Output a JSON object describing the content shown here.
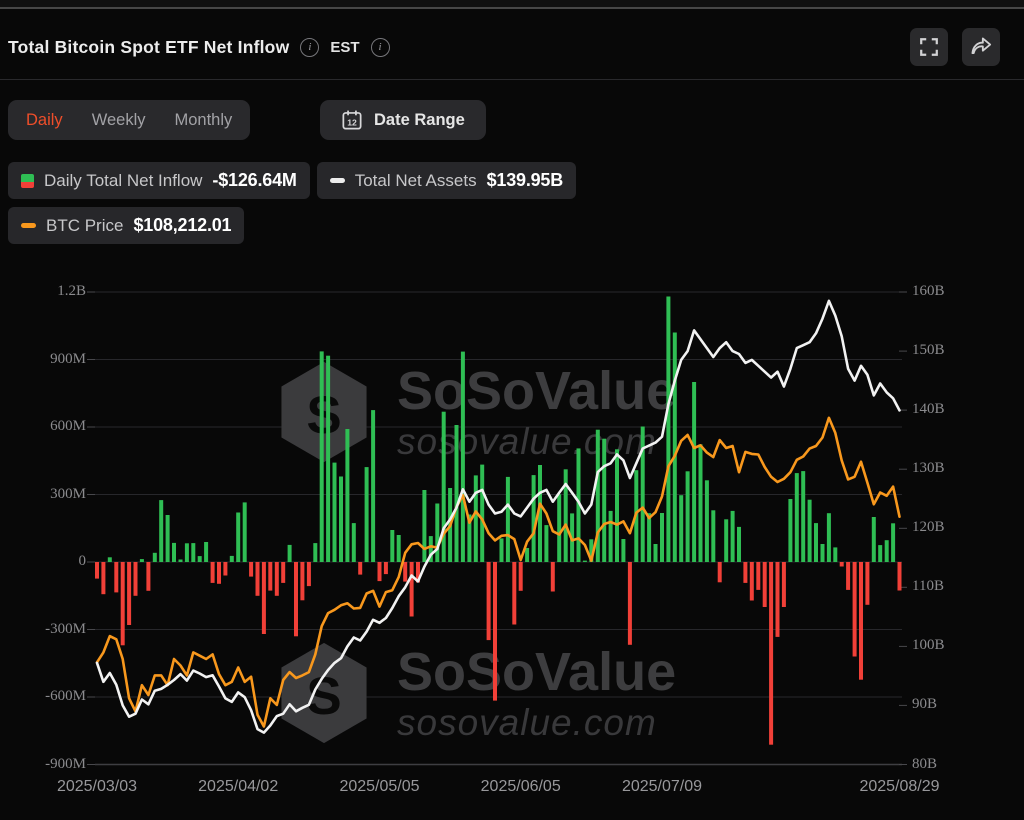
{
  "header": {
    "title": "Total Bitcoin Spot ETF Net Inflow",
    "timezone": "EST"
  },
  "toolbar": {
    "tabs": [
      {
        "label": "Daily",
        "active": true
      },
      {
        "label": "Weekly",
        "active": false
      },
      {
        "label": "Monthly",
        "active": false
      }
    ],
    "date_range_label": "Date Range"
  },
  "legend": {
    "items": [
      {
        "label": "Daily Total Net Inflow",
        "value": "-$126.64M",
        "icon": "bar-green-red"
      },
      {
        "label": "Total Net Assets",
        "value": "$139.95B",
        "icon": "white-dash"
      },
      {
        "label": "BTC Price",
        "value": "$108,212.01",
        "icon": "orange-dash"
      }
    ]
  },
  "watermark": {
    "brand": "SoSoValue",
    "domain": "sosovalue.com"
  },
  "colors": {
    "accent": "#ee4e2a",
    "green": "#2fbe54",
    "red": "#f14038",
    "orange": "#f8981d",
    "white_line": "#f2f2f2",
    "grid": "#27272b",
    "axis_text": "#8b8b8e"
  },
  "chart_data": {
    "type": "combo",
    "title": "Total Bitcoin Spot ETF Net Inflow",
    "grid": "horizontal",
    "legend_position": "top",
    "x": [
      "2025/03/03",
      "2025/03/04",
      "2025/03/05",
      "2025/03/06",
      "2025/03/07",
      "2025/03/10",
      "2025/03/11",
      "2025/03/12",
      "2025/03/13",
      "2025/03/14",
      "2025/03/17",
      "2025/03/18",
      "2025/03/19",
      "2025/03/20",
      "2025/03/21",
      "2025/03/24",
      "2025/03/25",
      "2025/03/26",
      "2025/03/27",
      "2025/03/28",
      "2025/03/31",
      "2025/04/01",
      "2025/04/02",
      "2025/04/03",
      "2025/04/04",
      "2025/04/07",
      "2025/04/08",
      "2025/04/09",
      "2025/04/10",
      "2025/04/11",
      "2025/04/14",
      "2025/04/15",
      "2025/04/16",
      "2025/04/17",
      "2025/04/21",
      "2025/04/22",
      "2025/04/23",
      "2025/04/24",
      "2025/04/25",
      "2025/04/28",
      "2025/04/29",
      "2025/04/30",
      "2025/05/01",
      "2025/05/02",
      "2025/05/05",
      "2025/05/06",
      "2025/05/07",
      "2025/05/08",
      "2025/05/09",
      "2025/05/12",
      "2025/05/13",
      "2025/05/14",
      "2025/05/15",
      "2025/05/16",
      "2025/05/19",
      "2025/05/20",
      "2025/05/21",
      "2025/05/22",
      "2025/05/23",
      "2025/05/27",
      "2025/05/28",
      "2025/05/29",
      "2025/05/30",
      "2025/06/02",
      "2025/06/03",
      "2025/06/04",
      "2025/06/05",
      "2025/06/06",
      "2025/06/09",
      "2025/06/10",
      "2025/06/11",
      "2025/06/12",
      "2025/06/13",
      "2025/06/16",
      "2025/06/17",
      "2025/06/18",
      "2025/06/20",
      "2025/06/23",
      "2025/06/24",
      "2025/06/25",
      "2025/06/26",
      "2025/06/27",
      "2025/06/30",
      "2025/07/01",
      "2025/07/02",
      "2025/07/03",
      "2025/07/07",
      "2025/07/08",
      "2025/07/09",
      "2025/07/10",
      "2025/07/11",
      "2025/07/14",
      "2025/07/15",
      "2025/07/16",
      "2025/07/17",
      "2025/07/18",
      "2025/07/21",
      "2025/07/22",
      "2025/07/23",
      "2025/07/24",
      "2025/07/25",
      "2025/07/28",
      "2025/07/29",
      "2025/07/30",
      "2025/07/31",
      "2025/08/01",
      "2025/08/04",
      "2025/08/05",
      "2025/08/06",
      "2025/08/07",
      "2025/08/08",
      "2025/08/11",
      "2025/08/12",
      "2025/08/13",
      "2025/08/14",
      "2025/08/15",
      "2025/08/18",
      "2025/08/19",
      "2025/08/20",
      "2025/08/21",
      "2025/08/22",
      "2025/08/25",
      "2025/08/26",
      "2025/08/27",
      "2025/08/28",
      "2025/08/29"
    ],
    "series": [
      {
        "name": "Daily Total Net Inflow",
        "type": "bar",
        "unit": "USD millions",
        "axis": "left",
        "values": [
          -74,
          -143,
          21,
          -135,
          -370,
          -280,
          -150,
          13,
          -128,
          41,
          275,
          209,
          85,
          11,
          83,
          84,
          26,
          89,
          -93,
          -97,
          -60,
          27,
          220,
          265,
          -65,
          -150,
          -320,
          -127,
          -150,
          -93,
          76,
          -330,
          -170,
          -107,
          84,
          936,
          917,
          442,
          380,
          591,
          173,
          -56,
          422,
          675,
          -85,
          -54,
          142,
          120,
          -87,
          -242,
          -91,
          320,
          115,
          260,
          668,
          329,
          609,
          935,
          211,
          385,
          433,
          -347,
          -616,
          105,
          378,
          -278,
          -128,
          62,
          386,
          431,
          164,
          -131,
          301,
          412,
          216,
          505,
          6,
          101,
          588,
          548,
          227,
          501,
          102,
          -368,
          408,
          602,
          217,
          80,
          218,
          1180,
          1020,
          297,
          403,
          800,
          523,
          363,
          230,
          -90,
          190,
          227,
          156,
          -93,
          -171,
          -124,
          -200,
          -812,
          -333,
          -200,
          280,
          395,
          404,
          277,
          173,
          80,
          217,
          65,
          -20,
          -124,
          -420,
          -523,
          -190,
          200,
          75,
          97,
          172,
          -126.64
        ]
      },
      {
        "name": "Total Net Assets",
        "type": "line",
        "unit": "USD billions",
        "axis": "right",
        "values": [
          97.2,
          94.0,
          95.5,
          93.5,
          90.0,
          88.1,
          88.6,
          91.0,
          90.2,
          92.5,
          92.8,
          93.5,
          94.3,
          95.3,
          94.2,
          95.9,
          95.4,
          94.8,
          95.1,
          93.2,
          91.2,
          90.6,
          92.2,
          91.4,
          89.2,
          86.0,
          85.4,
          86.6,
          88.2,
          88.6,
          90.2,
          89.0,
          89.6,
          90.1,
          92.7,
          94.5,
          96.0,
          97.2,
          98.0,
          100.0,
          101.5,
          101.0,
          102.5,
          104.5,
          104.0,
          104.8,
          106.5,
          108.5,
          110.0,
          112.0,
          111.0,
          113.5,
          115.5,
          116.5,
          120.0,
          121.5,
          123.5,
          126.6,
          124.5,
          126.0,
          126.5,
          124.0,
          122.5,
          122.8,
          124.0,
          122.5,
          122.0,
          123.5,
          125.0,
          126.0,
          126.5,
          124.5,
          126.0,
          127.5,
          126.0,
          124.5,
          122.5,
          124.0,
          129.5,
          130.5,
          131.0,
          132.5,
          131.5,
          128.5,
          131.0,
          133.5,
          134.0,
          134.5,
          135.5,
          141.0,
          145.0,
          148.5,
          150.0,
          153.5,
          152.0,
          150.5,
          149.0,
          150.5,
          151.5,
          150.0,
          149.5,
          148.0,
          148.5,
          147.5,
          146.5,
          145.5,
          146.5,
          144.0,
          147.0,
          150.5,
          151.0,
          151.5,
          153.0,
          155.5,
          158.5,
          156.0,
          152.5,
          147.0,
          145.0,
          147.5,
          146.0,
          142.5,
          144.5,
          143.0,
          142.0,
          139.95
        ]
      },
      {
        "name": "BTC Price",
        "type": "line",
        "unit": "USD thousands",
        "axis": "hidden",
        "axis_range": [
          70.4,
          142.5
        ],
        "values": [
          86.0,
          87.5,
          90.0,
          89.5,
          86.5,
          80.5,
          78.5,
          82.5,
          81.0,
          84.0,
          84.0,
          82.5,
          86.5,
          85.5,
          84.0,
          87.5,
          87.0,
          86.5,
          87.2,
          84.2,
          82.5,
          83.0,
          85.2,
          83.0,
          83.8,
          78.0,
          76.2,
          80.5,
          79.5,
          83.3,
          84.5,
          83.6,
          84.0,
          84.5,
          87.2,
          91.5,
          93.5,
          94.0,
          94.7,
          95.0,
          94.2,
          94.3,
          96.5,
          96.9,
          94.5,
          96.7,
          97.0,
          99.0,
          102.7,
          104.0,
          104.2,
          103.3,
          103.7,
          103.5,
          105.6,
          106.8,
          109.7,
          111.5,
          107.3,
          109.0,
          107.8,
          105.7,
          104.6,
          105.3,
          105.4,
          104.8,
          101.6,
          104.4,
          105.7,
          110.2,
          108.7,
          106.0,
          105.5,
          107.0,
          104.6,
          104.9,
          103.9,
          101.5,
          105.8,
          107.1,
          107.4,
          107.0,
          107.5,
          105.7,
          108.8,
          109.6,
          108.0,
          108.9,
          111.3,
          115.9,
          117.5,
          119.8,
          120.7,
          118.7,
          119.1,
          118.0,
          117.3,
          119.9,
          118.7,
          119.0,
          115.0,
          118.1,
          117.8,
          117.7,
          115.8,
          114.3,
          113.5,
          114.0,
          115.0,
          116.9,
          117.4,
          118.6,
          119.0,
          120.3,
          123.3,
          121.0,
          116.8,
          113.9,
          114.3,
          116.6,
          113.4,
          110.1,
          111.9,
          111.4,
          112.8,
          108.212
        ]
      }
    ],
    "left_axis": {
      "labels": [
        "1.2B",
        "900M",
        "600M",
        "300M",
        "0",
        "-300M",
        "-600M",
        "-900M"
      ],
      "values_m": [
        1200,
        900,
        600,
        300,
        0,
        -300,
        -600,
        -900
      ]
    },
    "right_axis": {
      "labels": [
        "160B",
        "150B",
        "140B",
        "130B",
        "120B",
        "110B",
        "100B",
        "90B",
        "80B"
      ],
      "values_b": [
        160,
        150,
        140,
        130,
        120,
        110,
        100,
        90,
        80
      ]
    },
    "x_ticks": [
      {
        "label": "2025/03/03",
        "index": 0
      },
      {
        "label": "2025/04/02",
        "index": 22
      },
      {
        "label": "2025/05/05",
        "index": 44
      },
      {
        "label": "2025/06/05",
        "index": 66
      },
      {
        "label": "2025/07/09",
        "index": 88
      },
      {
        "label": "2025/08/29",
        "index": 125
      }
    ]
  }
}
